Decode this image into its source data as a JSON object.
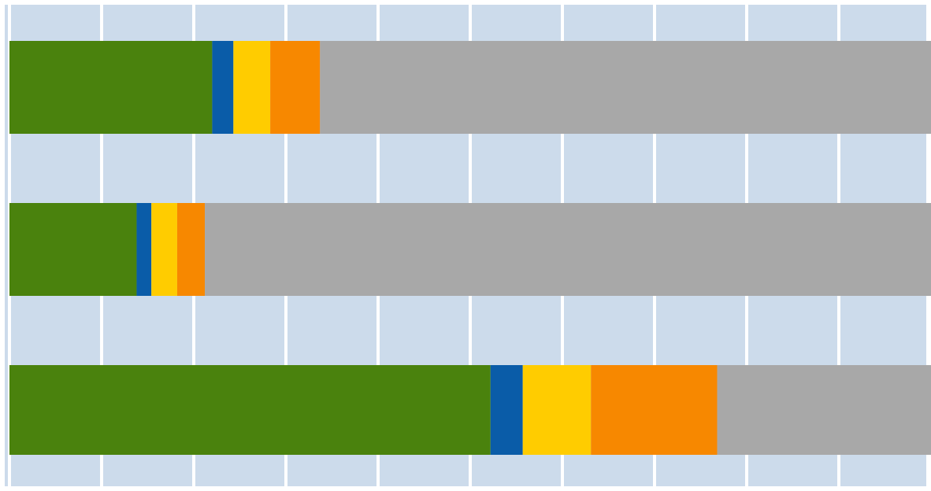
{
  "chart_data": {
    "type": "bar",
    "orientation": "horizontal",
    "stacked": true,
    "title": "",
    "xlabel": "",
    "ylabel": "",
    "xlim": [
      0,
      100
    ],
    "grid": true,
    "legend": "none",
    "categories": [
      "",
      "",
      ""
    ],
    "series": [
      {
        "color": "#4a820d",
        "values": [
          22.0,
          13.8,
          52.2
        ]
      },
      {
        "color": "#0a5ca8",
        "values": [
          2.3,
          1.6,
          3.5
        ]
      },
      {
        "color": "#ffcc00",
        "values": [
          4.0,
          2.8,
          7.4
        ]
      },
      {
        "color": "#f78800",
        "values": [
          5.4,
          3.0,
          13.7
        ]
      },
      {
        "color": "#a8a8a8",
        "values": [
          66.3,
          78.8,
          23.2
        ]
      }
    ]
  },
  "colors": {
    "plot_background": "#ccdbeb",
    "gridline": "#ffffff"
  }
}
